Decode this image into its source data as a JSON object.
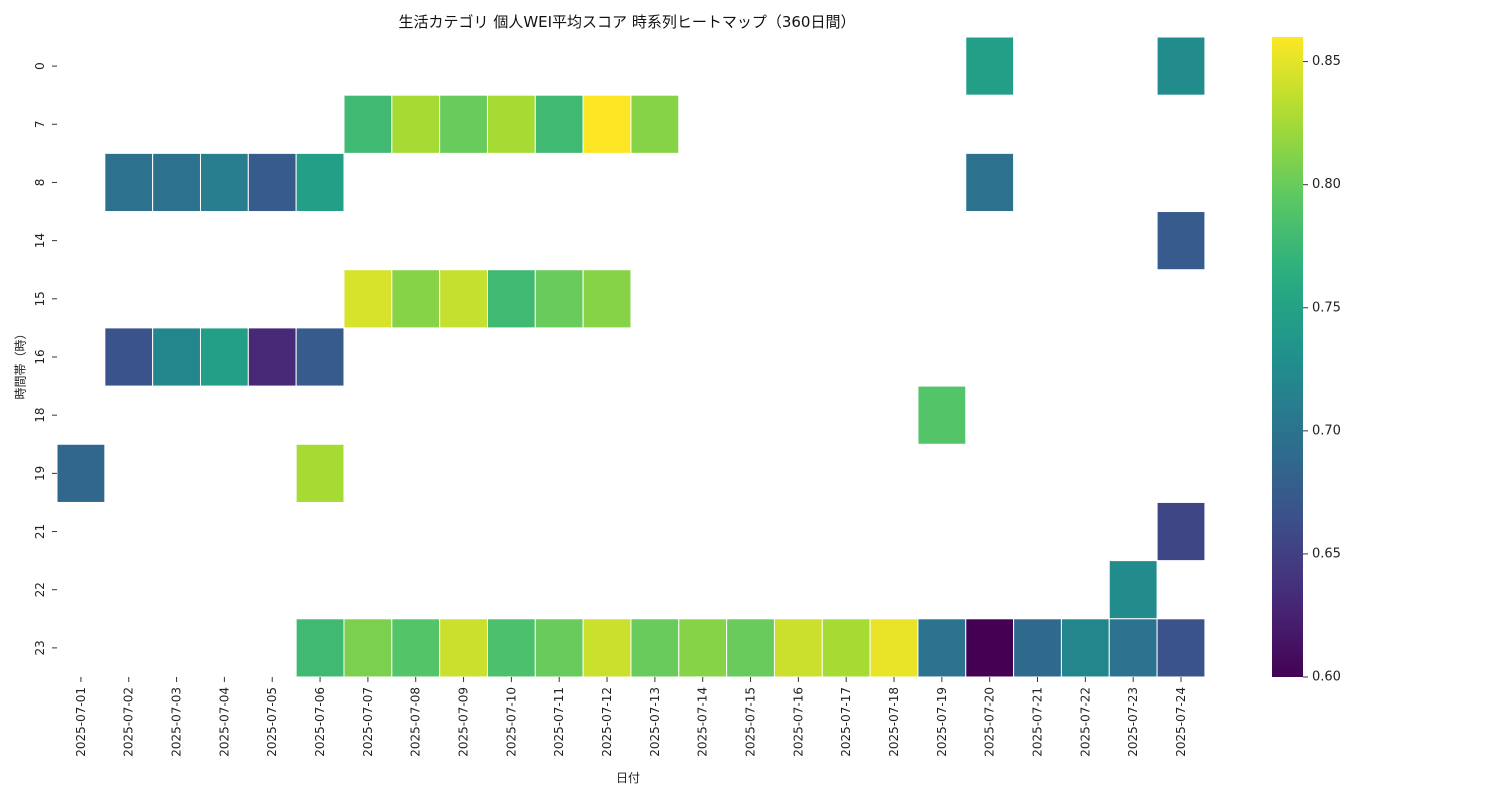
{
  "chart_data": {
    "type": "heatmap",
    "title": "生活カテゴリ 個人WEI平均スコア 時系列ヒートマップ（360日間）",
    "xlabel": "日付",
    "ylabel": "時間帯（時）",
    "x_categories": [
      "2025-07-01",
      "2025-07-02",
      "2025-07-03",
      "2025-07-04",
      "2025-07-05",
      "2025-07-06",
      "2025-07-07",
      "2025-07-08",
      "2025-07-09",
      "2025-07-10",
      "2025-07-11",
      "2025-07-12",
      "2025-07-13",
      "2025-07-14",
      "2025-07-15",
      "2025-07-16",
      "2025-07-17",
      "2025-07-18",
      "2025-07-19",
      "2025-07-20",
      "2025-07-21",
      "2025-07-22",
      "2025-07-23",
      "2025-07-24"
    ],
    "y_categories": [
      "0",
      "7",
      "8",
      "14",
      "15",
      "16",
      "18",
      "19",
      "21",
      "22",
      "23"
    ],
    "values": [
      [
        null,
        null,
        null,
        null,
        null,
        null,
        null,
        null,
        null,
        null,
        null,
        null,
        null,
        null,
        null,
        null,
        null,
        null,
        null,
        0.747,
        null,
        null,
        null,
        0.726
      ],
      [
        null,
        null,
        null,
        null,
        null,
        null,
        0.778,
        0.826,
        0.8,
        0.826,
        0.778,
        0.86,
        0.813,
        null,
        null,
        null,
        null,
        null,
        null,
        null,
        null,
        null,
        null,
        null
      ],
      [
        null,
        0.697,
        0.697,
        0.71,
        0.675,
        0.747,
        null,
        null,
        null,
        null,
        null,
        null,
        null,
        null,
        null,
        null,
        null,
        null,
        null,
        0.697,
        null,
        null,
        null,
        null
      ],
      [
        null,
        null,
        null,
        null,
        null,
        null,
        null,
        null,
        null,
        null,
        null,
        null,
        null,
        null,
        null,
        null,
        null,
        null,
        null,
        null,
        null,
        null,
        null,
        0.675
      ],
      [
        null,
        null,
        null,
        null,
        null,
        null,
        0.845,
        0.813,
        0.838,
        0.778,
        0.8,
        0.813,
        null,
        null,
        null,
        null,
        null,
        null,
        null,
        null,
        null,
        null,
        null,
        null
      ],
      [
        null,
        0.668,
        0.72,
        0.747,
        0.63,
        0.675,
        null,
        null,
        null,
        null,
        null,
        null,
        null,
        null,
        null,
        null,
        null,
        null,
        null,
        null,
        null,
        null,
        null,
        null
      ],
      [
        null,
        null,
        null,
        null,
        null,
        null,
        null,
        null,
        null,
        null,
        null,
        null,
        null,
        null,
        null,
        null,
        null,
        null,
        0.79,
        null,
        null,
        null,
        null,
        null
      ],
      [
        0.686,
        null,
        null,
        null,
        null,
        0.826,
        null,
        null,
        null,
        null,
        null,
        null,
        null,
        null,
        null,
        null,
        null,
        null,
        null,
        null,
        null,
        null,
        null,
        null
      ],
      [
        null,
        null,
        null,
        null,
        null,
        null,
        null,
        null,
        null,
        null,
        null,
        null,
        null,
        null,
        null,
        null,
        null,
        null,
        null,
        null,
        null,
        null,
        null,
        0.655
      ],
      [
        null,
        null,
        null,
        null,
        null,
        null,
        null,
        null,
        null,
        null,
        null,
        null,
        null,
        null,
        null,
        null,
        null,
        null,
        null,
        null,
        null,
        null,
        0.726,
        null
      ],
      [
        null,
        null,
        null,
        null,
        null,
        0.778,
        0.808,
        0.79,
        0.84,
        0.785,
        0.8,
        0.84,
        0.8,
        0.813,
        0.8,
        0.84,
        0.826,
        0.852,
        0.7,
        0.6,
        0.69,
        0.72,
        0.7,
        0.668
      ]
    ],
    "colorbar": {
      "colormap": "viridis",
      "range": [
        0.6,
        0.86
      ],
      "ticks": [
        "0.60",
        "0.65",
        "0.70",
        "0.75",
        "0.80",
        "0.85"
      ]
    },
    "grid": false
  }
}
